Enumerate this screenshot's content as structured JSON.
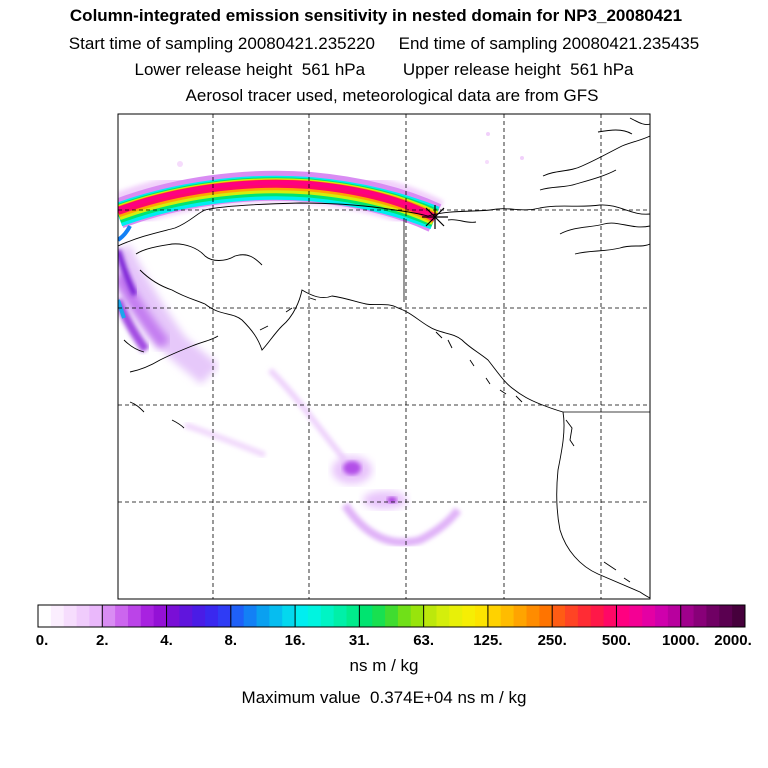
{
  "header": {
    "title": "Column-integrated emission sensitivity in nested domain for NP3_20080421",
    "start_label": "Start time of sampling 20080421.235220",
    "end_label": "End time of sampling 20080421.235435",
    "lower_label": "Lower release height  561 hPa",
    "upper_label": "Upper release height  561 hPa",
    "info": "Aerosol tracer used, meteorological data are from GFS"
  },
  "chart_data": {
    "type": "heatmap",
    "title": "Column-integrated emission sensitivity in nested domain for NP3_20080421",
    "units": "ns m / kg",
    "max_text": "Maximum value  0.374E+04 ns m / kg",
    "colorbar": {
      "tick_labels": [
        "0.",
        "2.",
        "4.",
        "8.",
        "16.",
        "31.",
        "63.",
        "125.",
        "250.",
        "500.",
        "1000.",
        "2000."
      ],
      "colors": [
        "#ffffff",
        "#fbeefe",
        "#f6ddfd",
        "#f0ccfc",
        "#eab8fb",
        "#d98cf3",
        "#cc66ee",
        "#bb44e8",
        "#a822e0",
        "#9411d6",
        "#7a0fd6",
        "#6015dd",
        "#4a1ce6",
        "#3a28ef",
        "#2f3cf5",
        "#1f60f8",
        "#1380f5",
        "#0aa0f0",
        "#06bdf0",
        "#04d8ee",
        "#00eef0",
        "#00f4e0",
        "#00f4c4",
        "#00f0a8",
        "#00ec8c",
        "#00e470",
        "#18e050",
        "#40dc30",
        "#70e018",
        "#98e40c",
        "#bce80c",
        "#d4ee0c",
        "#e8f008",
        "#f6ee04",
        "#fce400",
        "#ffd200",
        "#ffbc00",
        "#ffa400",
        "#ff8c00",
        "#ff7400",
        "#ff5c14",
        "#ff4424",
        "#ff2c34",
        "#ff1848",
        "#ff0866",
        "#ff0080",
        "#f40094",
        "#e400a4",
        "#cf00ac",
        "#b8009e",
        "#a0008c",
        "#880078",
        "#700064",
        "#5a0050",
        "#46003c"
      ]
    },
    "grid": "dashed lat/lon lines",
    "release_site_marker": "star"
  }
}
